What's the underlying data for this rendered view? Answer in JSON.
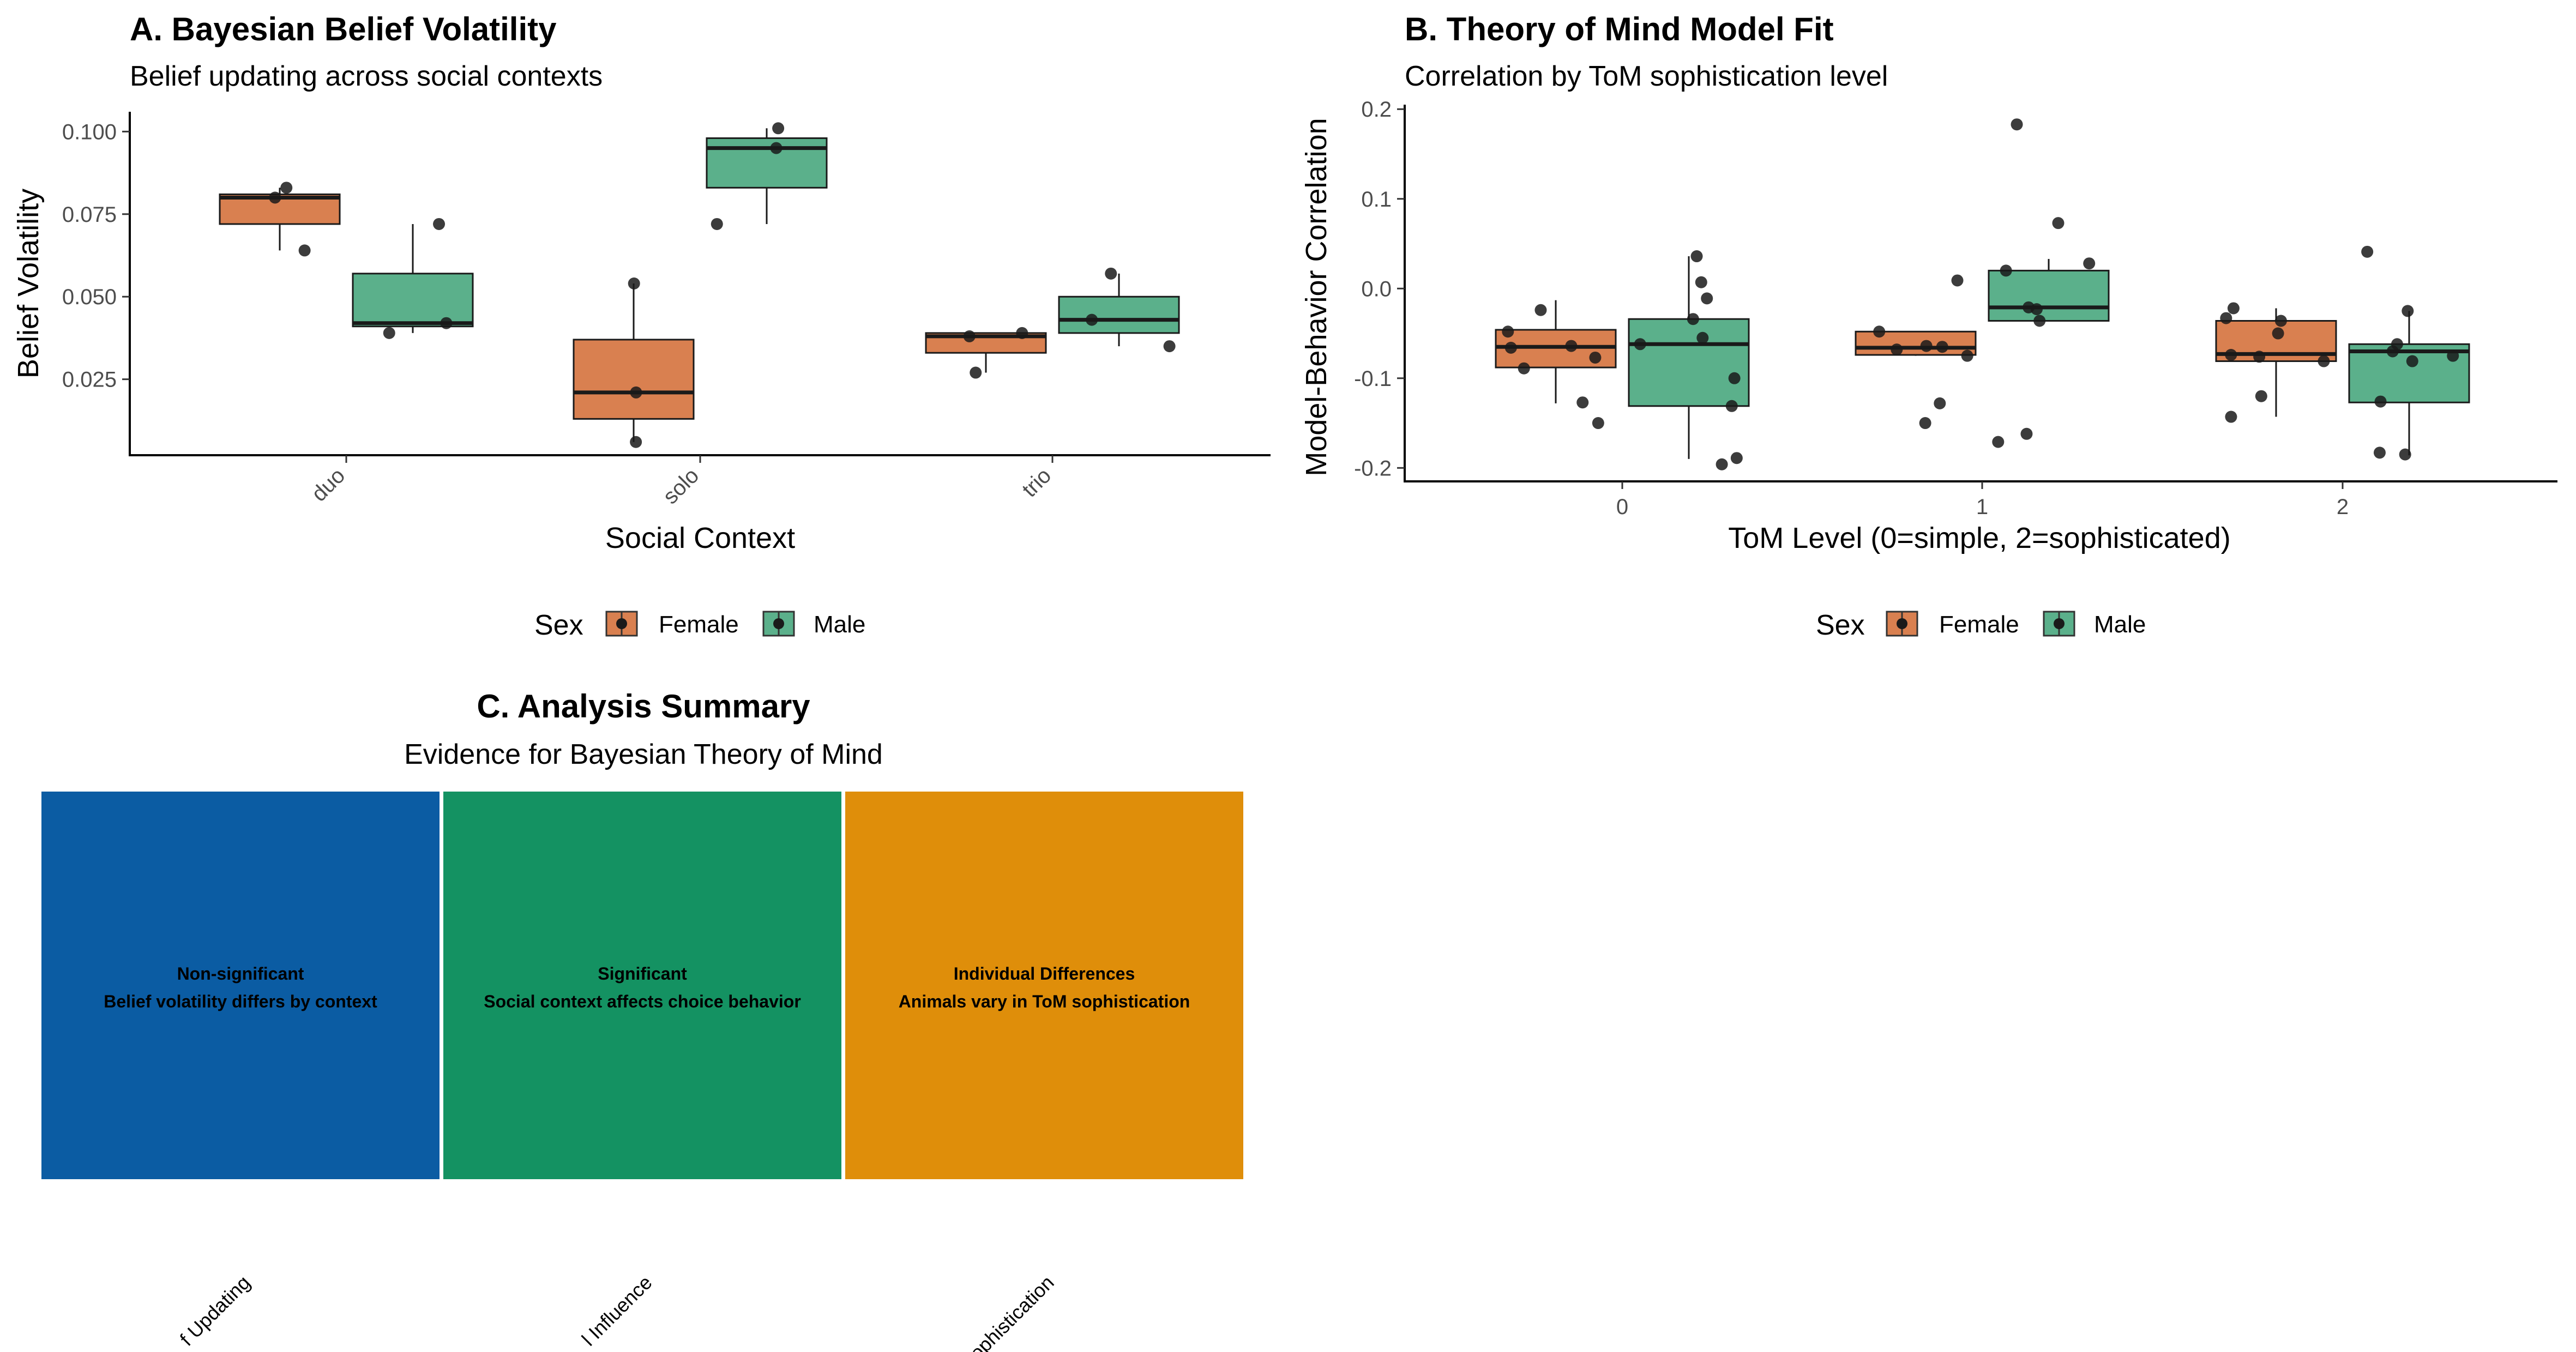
{
  "colors": {
    "female": "#D98050",
    "male": "#5BB08B",
    "point": "#1a1a1a"
  },
  "legend": {
    "title": "Sex",
    "items": [
      "Female",
      "Male"
    ]
  },
  "chart_data": [
    {
      "type": "box",
      "title": "A. Bayesian Belief Volatility",
      "subtitle": "Belief updating across social contexts",
      "xlabel": "Social Context",
      "ylabel": "Belief Volatility",
      "categories": [
        "duo",
        "solo",
        "trio"
      ],
      "ylim": [
        0.002,
        0.106
      ],
      "yticks": [
        0.025,
        0.05,
        0.075,
        0.1
      ],
      "ytick_labels": [
        "0.025",
        "0.050",
        "0.075",
        "0.100"
      ],
      "legend_placement": "bottom",
      "series": [
        {
          "name": "Female",
          "boxes": [
            {
              "category": "duo",
              "min": 0.064,
              "q1": 0.072,
              "median": 0.08,
              "q3": 0.081,
              "max": 0.083
            },
            {
              "category": "solo",
              "min": 0.006,
              "q1": 0.013,
              "median": 0.021,
              "q3": 0.037,
              "max": 0.054
            },
            {
              "category": "trio",
              "min": 0.027,
              "q1": 0.033,
              "median": 0.038,
              "q3": 0.039,
              "max": 0.039
            }
          ]
        },
        {
          "name": "Male",
          "boxes": [
            {
              "category": "duo",
              "min": 0.039,
              "q1": 0.041,
              "median": 0.042,
              "q3": 0.057,
              "max": 0.072
            },
            {
              "category": "solo",
              "min": 0.072,
              "q1": 0.083,
              "median": 0.095,
              "q3": 0.098,
              "max": 0.101
            },
            {
              "category": "trio",
              "min": 0.035,
              "q1": 0.039,
              "median": 0.043,
              "q3": 0.05,
              "max": 0.057
            }
          ]
        }
      ],
      "points": [
        {
          "series": "Female",
          "category": "duo",
          "values": [
            0.064,
            0.083,
            0.08
          ]
        },
        {
          "series": "Male",
          "category": "duo",
          "values": [
            0.039,
            0.042,
            0.072
          ]
        },
        {
          "series": "Female",
          "category": "solo",
          "values": [
            0.054,
            0.021,
            0.006
          ]
        },
        {
          "series": "Male",
          "category": "solo",
          "values": [
            0.072,
            0.095,
            0.101
          ]
        },
        {
          "series": "Female",
          "category": "trio",
          "values": [
            0.027,
            0.039,
            0.038
          ]
        },
        {
          "series": "Male",
          "category": "trio",
          "values": [
            0.057,
            0.043,
            0.035
          ]
        }
      ]
    },
    {
      "type": "box",
      "title": "B. Theory of Mind Model Fit",
      "subtitle": "Correlation by ToM sophistication level",
      "xlabel": "ToM Level (0=simple, 2=sophisticated)",
      "ylabel": "Model-Behavior Correlation",
      "categories": [
        "0",
        "1",
        "2"
      ],
      "ylim": [
        -0.215,
        0.205
      ],
      "yticks": [
        -0.2,
        -0.1,
        0.0,
        0.1,
        0.2
      ],
      "ytick_labels": [
        "-0.2",
        "-0.1",
        "0.0",
        "0.1",
        "0.2"
      ],
      "legend_placement": "bottom",
      "series": [
        {
          "name": "Female",
          "boxes": [
            {
              "category": "0",
              "min": -0.128,
              "q1": -0.088,
              "median": -0.065,
              "q3": -0.046,
              "max": -0.013
            },
            {
              "category": "1",
              "min": -0.075,
              "q1": -0.074,
              "median": -0.066,
              "q3": -0.048,
              "max": -0.048
            },
            {
              "category": "2",
              "min": -0.143,
              "q1": -0.081,
              "median": -0.073,
              "q3": -0.036,
              "max": -0.022
            }
          ]
        },
        {
          "name": "Male",
          "boxes": [
            {
              "category": "0",
              "min": -0.19,
              "q1": -0.131,
              "median": -0.062,
              "q3": -0.034,
              "max": 0.036
            },
            {
              "category": "1",
              "min": -0.036,
              "q1": -0.036,
              "median": -0.021,
              "q3": 0.02,
              "max": 0.033
            },
            {
              "category": "2",
              "min": -0.186,
              "q1": -0.127,
              "median": -0.07,
              "q3": -0.062,
              "max": -0.025
            }
          ]
        }
      ],
      "points": [
        {
          "series": "Female",
          "category": "0",
          "values": [
            -0.048,
            -0.024,
            -0.077,
            -0.089,
            -0.15,
            -0.064,
            -0.127,
            -0.066
          ]
        },
        {
          "series": "Male",
          "category": "0",
          "values": [
            -0.011,
            -0.1,
            0.036,
            -0.034,
            -0.055,
            0.007,
            -0.189,
            -0.131,
            -0.062,
            -0.196
          ]
        },
        {
          "series": "Female",
          "category": "1",
          "values": [
            0.009,
            -0.068,
            -0.048,
            -0.075,
            -0.15,
            -0.128,
            -0.064,
            -0.065
          ]
        },
        {
          "series": "Male",
          "category": "1",
          "values": [
            0.073,
            -0.021,
            0.183,
            0.02,
            -0.023,
            0.028,
            -0.036,
            -0.162,
            -0.171
          ]
        },
        {
          "series": "Female",
          "category": "2",
          "values": [
            -0.033,
            -0.036,
            -0.05,
            -0.12,
            -0.076,
            -0.143,
            -0.022,
            -0.081,
            -0.074
          ]
        },
        {
          "series": "Male",
          "category": "2",
          "values": [
            -0.183,
            -0.081,
            -0.025,
            -0.07,
            0.041,
            -0.062,
            -0.075,
            -0.185,
            -0.126
          ]
        }
      ]
    },
    {
      "type": "heatmap",
      "title": "C. Analysis Summary",
      "subtitle": "Evidence for Bayesian Theory of Mind",
      "tiles": [
        {
          "line1": "Non-significant",
          "line2": "Belief volatility differs by context",
          "color": "#0B5CA3",
          "xlabel_visible": "f Updating"
        },
        {
          "line1": "Significant",
          "line2": "Social context affects choice behavior",
          "color": "#149262",
          "xlabel_visible": "l Influence"
        },
        {
          "line1": "Individual Differences",
          "line2": "Animals vary in ToM sophistication",
          "color": "#DF8E0A",
          "xlabel_visible": "ophistication"
        }
      ]
    }
  ]
}
